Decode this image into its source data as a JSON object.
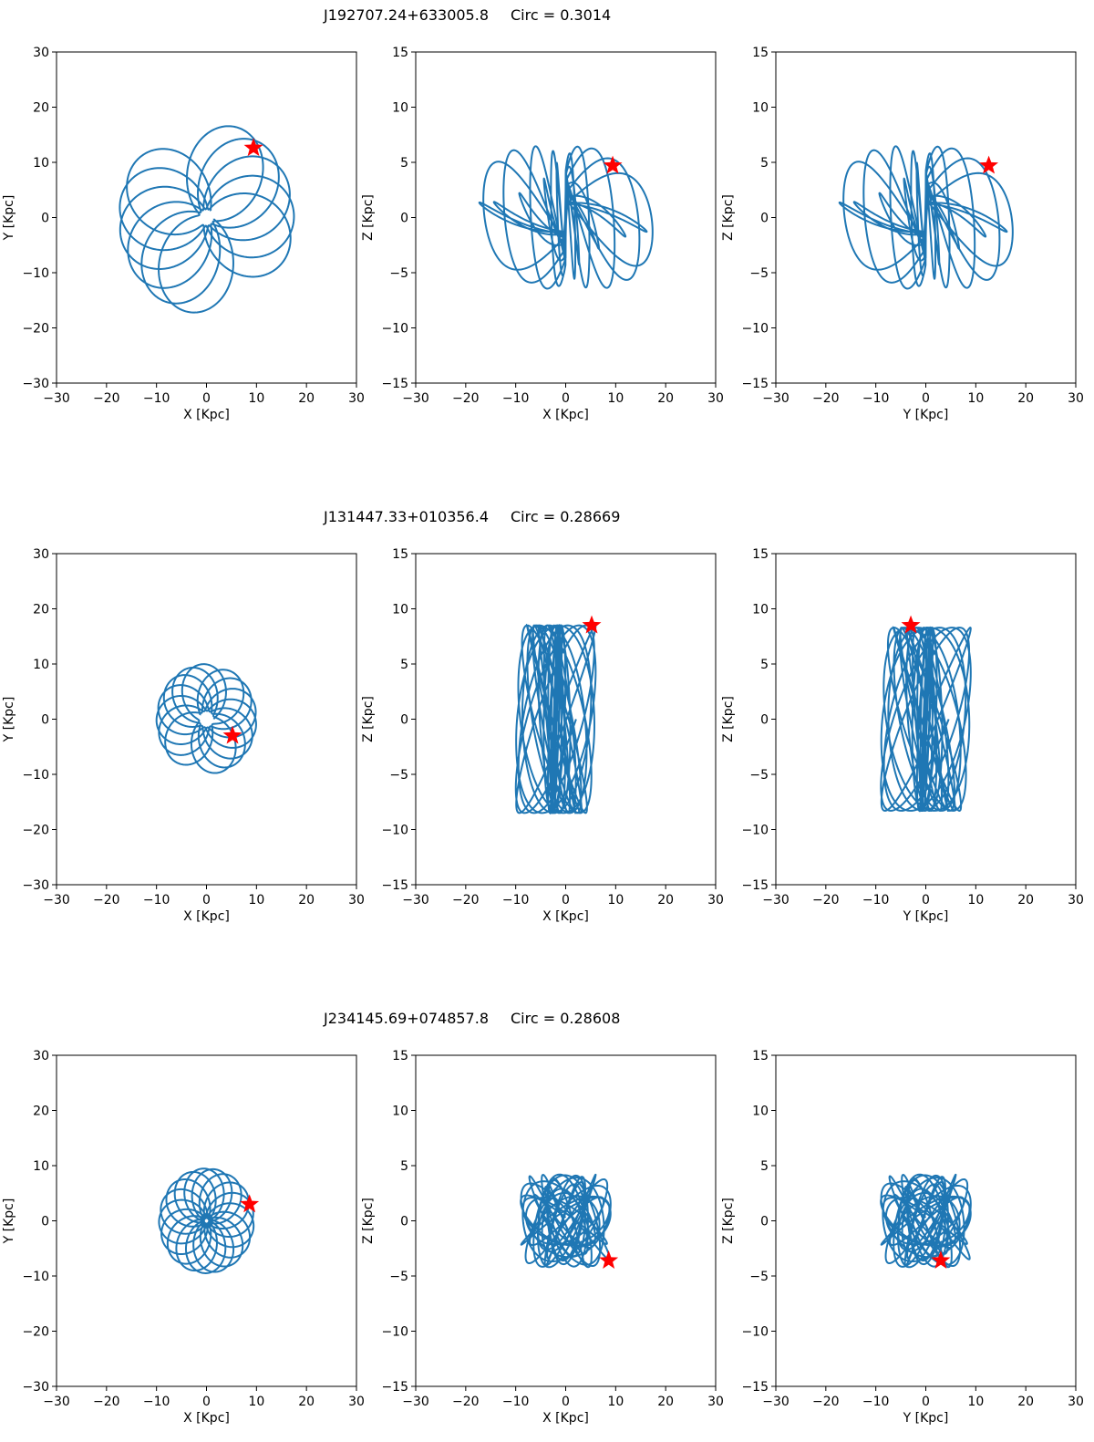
{
  "figure": {
    "rows": [
      {
        "title_name": "J192707.24+633005.8",
        "circ_label": "Circ = 0.3014"
      },
      {
        "title_name": "J131447.33+010356.4",
        "circ_label": "Circ = 0.28669"
      },
      {
        "title_name": "J234145.69+074857.8",
        "circ_label": "Circ = 0.28608"
      }
    ]
  },
  "colors": {
    "orbit": "#1f77b4",
    "star": "#ff0000"
  },
  "chart_data": [
    {
      "type": "line",
      "row": 0,
      "panel": "XY",
      "xlabel": "X [Kpc]",
      "ylabel": "Y [Kpc]",
      "xlim": [
        -30,
        30
      ],
      "ylim": [
        -30,
        30
      ],
      "xticks": [
        -30,
        -20,
        -10,
        0,
        10,
        20,
        30
      ],
      "yticks": [
        -30,
        -20,
        -10,
        0,
        10,
        20,
        30
      ],
      "orbit": {
        "kind": "rosette",
        "R_min": 1.5,
        "R_max": 17.5,
        "petals": 11,
        "phase": 0.93,
        "start": [
          -11,
          11
        ],
        "end": [
          9.4,
          12.6
        ]
      },
      "marker": {
        "label": "star",
        "x": 9.4,
        "y": 12.6
      }
    },
    {
      "type": "line",
      "row": 0,
      "panel": "XZ",
      "xlabel": "X [Kpc]",
      "ylabel": "Z [Kpc]",
      "xlim": [
        -30,
        30
      ],
      "ylim": [
        -15,
        15
      ],
      "xticks": [
        -30,
        -20,
        -10,
        0,
        10,
        20,
        30
      ],
      "yticks": [
        -15,
        -10,
        -5,
        0,
        5,
        10,
        15
      ],
      "orbit": {
        "kind": "butterfly",
        "x_extent": 17.5,
        "z_extent": 6.8
      },
      "marker": {
        "label": "star",
        "x": 9.4,
        "y": 4.7
      }
    },
    {
      "type": "line",
      "row": 0,
      "panel": "YZ",
      "xlabel": "Y [Kpc]",
      "ylabel": "Z [Kpc]",
      "xlim": [
        -30,
        30
      ],
      "ylim": [
        -15,
        15
      ],
      "xticks": [
        -30,
        -20,
        -10,
        0,
        10,
        20,
        30
      ],
      "yticks": [
        -15,
        -10,
        -5,
        0,
        5,
        10,
        15
      ],
      "orbit": {
        "kind": "butterfly",
        "x_extent": 17.5,
        "z_extent": 6.8
      },
      "marker": {
        "label": "star",
        "x": 12.6,
        "y": 4.7
      }
    },
    {
      "type": "line",
      "row": 1,
      "panel": "XY",
      "xlabel": "X [Kpc]",
      "ylabel": "Y [Kpc]",
      "xlim": [
        -30,
        30
      ],
      "ylim": [
        -30,
        30
      ],
      "xticks": [
        -30,
        -20,
        -10,
        0,
        10,
        20,
        30
      ],
      "yticks": [
        -30,
        -20,
        -10,
        0,
        10,
        20,
        30
      ],
      "orbit": {
        "kind": "rosette",
        "R_min": 1.5,
        "R_max": 10,
        "petals": 14
      },
      "marker": {
        "label": "star",
        "x": 5.2,
        "y": -3
      }
    },
    {
      "type": "line",
      "row": 1,
      "panel": "XZ",
      "xlabel": "X [Kpc]",
      "ylabel": "Z [Kpc]",
      "xlim": [
        -30,
        30
      ],
      "ylim": [
        -15,
        15
      ],
      "xticks": [
        -30,
        -20,
        -10,
        0,
        10,
        20,
        30
      ],
      "yticks": [
        -15,
        -10,
        -5,
        0,
        5,
        10,
        15
      ],
      "orbit": {
        "kind": "vertical",
        "x_range": [
          -10,
          6
        ],
        "z_range": [
          -8.5,
          8.5
        ]
      },
      "marker": {
        "label": "star",
        "x": 5.2,
        "y": 8.5
      }
    },
    {
      "type": "line",
      "row": 1,
      "panel": "YZ",
      "xlabel": "Y [Kpc]",
      "ylabel": "Z [Kpc]",
      "xlim": [
        -30,
        30
      ],
      "ylim": [
        -15,
        15
      ],
      "xticks": [
        -30,
        -20,
        -10,
        0,
        10,
        20,
        30
      ],
      "yticks": [
        -15,
        -10,
        -5,
        0,
        5,
        10,
        15
      ],
      "orbit": {
        "kind": "vertical",
        "x_range": [
          -9,
          9
        ],
        "z_range": [
          -8.3,
          8.3
        ]
      },
      "marker": {
        "label": "star",
        "x": -3,
        "y": 8.5
      }
    },
    {
      "type": "line",
      "row": 2,
      "panel": "XY",
      "xlabel": "X [Kpc]",
      "ylabel": "Y [Kpc]",
      "xlim": [
        -30,
        30
      ],
      "ylim": [
        -30,
        30
      ],
      "xticks": [
        -30,
        -20,
        -10,
        0,
        10,
        20,
        30
      ],
      "yticks": [
        -30,
        -20,
        -10,
        0,
        10,
        20,
        30
      ],
      "orbit": {
        "kind": "rosette",
        "R_min": 0.5,
        "R_max": 9.5,
        "petals": 17
      },
      "marker": {
        "label": "star",
        "x": 8.6,
        "y": 3
      }
    },
    {
      "type": "line",
      "row": 2,
      "panel": "XZ",
      "xlabel": "X [Kpc]",
      "ylabel": "Z [Kpc]",
      "xlim": [
        -30,
        30
      ],
      "ylim": [
        -15,
        15
      ],
      "xticks": [
        -30,
        -20,
        -10,
        0,
        10,
        20,
        30
      ],
      "yticks": [
        -15,
        -10,
        -5,
        0,
        5,
        10,
        15
      ],
      "orbit": {
        "kind": "box",
        "x_extent": 9,
        "z_extent": 4.2
      },
      "marker": {
        "label": "star",
        "x": 8.6,
        "y": -3.6
      }
    },
    {
      "type": "line",
      "row": 2,
      "panel": "YZ",
      "xlabel": "Y [Kpc]",
      "ylabel": "Z [Kpc]",
      "xlim": [
        -30,
        30
      ],
      "ylim": [
        -15,
        15
      ],
      "xticks": [
        -30,
        -20,
        -10,
        0,
        10,
        20,
        30
      ],
      "yticks": [
        -15,
        -10,
        -5,
        0,
        5,
        10,
        15
      ],
      "orbit": {
        "kind": "box",
        "x_extent": 9,
        "z_extent": 4.2
      },
      "marker": {
        "label": "star",
        "x": 3,
        "y": -3.6
      }
    }
  ]
}
